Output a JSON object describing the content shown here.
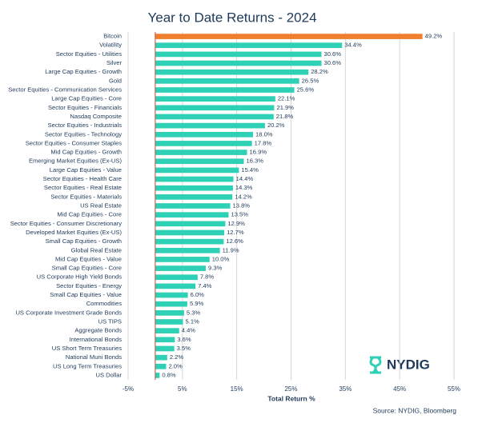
{
  "chart_data": {
    "type": "bar",
    "orientation": "horizontal",
    "title": "Year to Date Returns - 2024",
    "x_label": "Total Return %",
    "source": "Source: NYDIG, Bloomberg",
    "logo": "NYDIG",
    "categories": [
      "Bitcoin",
      "Volatility",
      "Sector Equities - Utilities",
      "Silver",
      "Large Cap Equities - Growth",
      "Gold",
      "Sector Equities - Communication Services",
      "Large Cap Equities - Core",
      "Sector Equities - Financials",
      "Nasdaq Composite",
      "Sector Equities - Industrials",
      "Sector Equities - Technology",
      "Sector Equities - Consumer Staples",
      "Mid Cap Equities - Growth",
      "Emerging Market Equities (Ex-US)",
      "Large Cap Equities - Value",
      "Sector Equities - Health Care",
      "Sector Equities - Real Estate",
      "Sector Equities - Materials",
      "US Real Estate",
      "Mid Cap Equities - Core",
      "Sector Equities - Consumer Discretionary",
      "Developed Market Equities (Ex-US)",
      "Small Cap Equities - Growth",
      "Global Real Estate",
      "Mid Cap Equities - Value",
      "Small Cap Equities - Core",
      "US Corporate High Yield Bonds",
      "Sector Equities - Energy",
      "Small Cap Equities - Value",
      "Commodities",
      "US Corporate Investment Grade Bonds",
      "US TIPS",
      "Aggregate Bonds",
      "International Bonds",
      "US Short Term Treasuries",
      "National Muni Bonds",
      "US Long Term Treasuries",
      "US Dollar"
    ],
    "values": [
      49.2,
      34.4,
      30.6,
      30.6,
      28.2,
      26.5,
      25.6,
      22.1,
      21.9,
      21.8,
      20.2,
      18.0,
      17.8,
      16.9,
      16.3,
      15.4,
      14.4,
      14.3,
      14.2,
      13.8,
      13.5,
      12.9,
      12.7,
      12.6,
      11.9,
      10.0,
      9.3,
      7.8,
      7.4,
      6.0,
      5.9,
      5.3,
      5.1,
      4.4,
      3.6,
      3.5,
      2.2,
      2.0,
      0.8
    ],
    "value_labels": [
      "49.2%",
      "34.4%",
      "30.6%",
      "30.6%",
      "28.2%",
      "26.5%",
      "25.6%",
      "22.1%",
      "21.9%",
      "21.8%",
      "20.2%",
      "18.0%",
      "17.8%",
      "16.9%",
      "16.3%",
      "15.4%",
      "14.4%",
      "14.3%",
      "14.2%",
      "13.8%",
      "13.5%",
      "12.9%",
      "12.7%",
      "12.6%",
      "11.9%",
      "10.0%",
      "9.3%",
      "7.8%",
      "7.4%",
      "6.0%",
      "5.9%",
      "5.3%",
      "5.1%",
      "4.4%",
      "3.6%",
      "3.5%",
      "2.2%",
      "2.0%",
      "0.8%"
    ],
    "colors": [
      "#f07f2e",
      "#2ed1b5",
      "#2ed1b5",
      "#2ed1b5",
      "#2ed1b5",
      "#2ed1b5",
      "#2ed1b5",
      "#2ed1b5",
      "#2ed1b5",
      "#2ed1b5",
      "#2ed1b5",
      "#2ed1b5",
      "#2ed1b5",
      "#2ed1b5",
      "#2ed1b5",
      "#2ed1b5",
      "#2ed1b5",
      "#2ed1b5",
      "#2ed1b5",
      "#2ed1b5",
      "#2ed1b5",
      "#2ed1b5",
      "#2ed1b5",
      "#2ed1b5",
      "#2ed1b5",
      "#2ed1b5",
      "#2ed1b5",
      "#2ed1b5",
      "#2ed1b5",
      "#2ed1b5",
      "#2ed1b5",
      "#2ed1b5",
      "#2ed1b5",
      "#2ed1b5",
      "#2ed1b5",
      "#2ed1b5",
      "#2ed1b5",
      "#2ed1b5",
      "#2ed1b5"
    ],
    "xlim": [
      -5,
      55
    ],
    "xticks": [
      {
        "value": -5,
        "label": "-5%"
      },
      {
        "value": 5,
        "label": "5%"
      },
      {
        "value": 15,
        "label": "15%"
      },
      {
        "value": 25,
        "label": "25%"
      },
      {
        "value": 35,
        "label": "35%"
      },
      {
        "value": 45,
        "label": "45%"
      },
      {
        "value": 55,
        "label": "55%"
      }
    ],
    "grid": true
  }
}
